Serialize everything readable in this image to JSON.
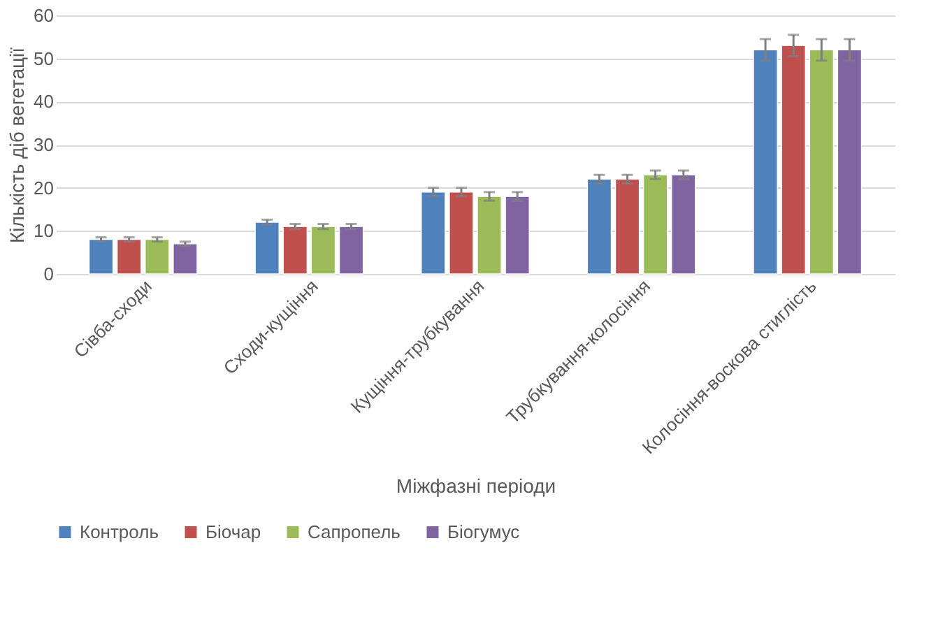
{
  "chart_data": {
    "type": "bar",
    "xlabel": "Міжфазні періоди",
    "ylabel": "Кількість діб вегетації",
    "categories": [
      "Сівба-сходи",
      "Сходи-кущіння",
      "Кущіння-трубкування",
      "Трубкування-колосіння",
      "Колосіння-воскова стиглість"
    ],
    "series": [
      {
        "name": "Контроль",
        "color": "#4f81bd",
        "values": [
          8,
          12,
          19,
          22,
          52
        ],
        "errors": [
          0.5,
          0.6,
          1,
          1,
          2.5
        ]
      },
      {
        "name": "Біочар",
        "color": "#c0504d",
        "values": [
          8,
          11,
          19,
          22,
          53
        ],
        "errors": [
          0.5,
          0.6,
          1,
          1,
          2.5
        ]
      },
      {
        "name": "Сапропель",
        "color": "#9bbb59",
        "values": [
          8,
          11,
          18,
          23,
          52
        ],
        "errors": [
          0.5,
          0.6,
          1,
          1,
          2.5
        ]
      },
      {
        "name": "Біогумус",
        "color": "#8064a2",
        "values": [
          7,
          11,
          18,
          23,
          52
        ],
        "errors": [
          0.5,
          0.6,
          1,
          1,
          2.5
        ]
      }
    ],
    "ylim": [
      0,
      60
    ],
    "yticks": [
      0,
      10,
      20,
      30,
      40,
      50,
      60
    ],
    "grid": "y",
    "legend": "bottom"
  }
}
